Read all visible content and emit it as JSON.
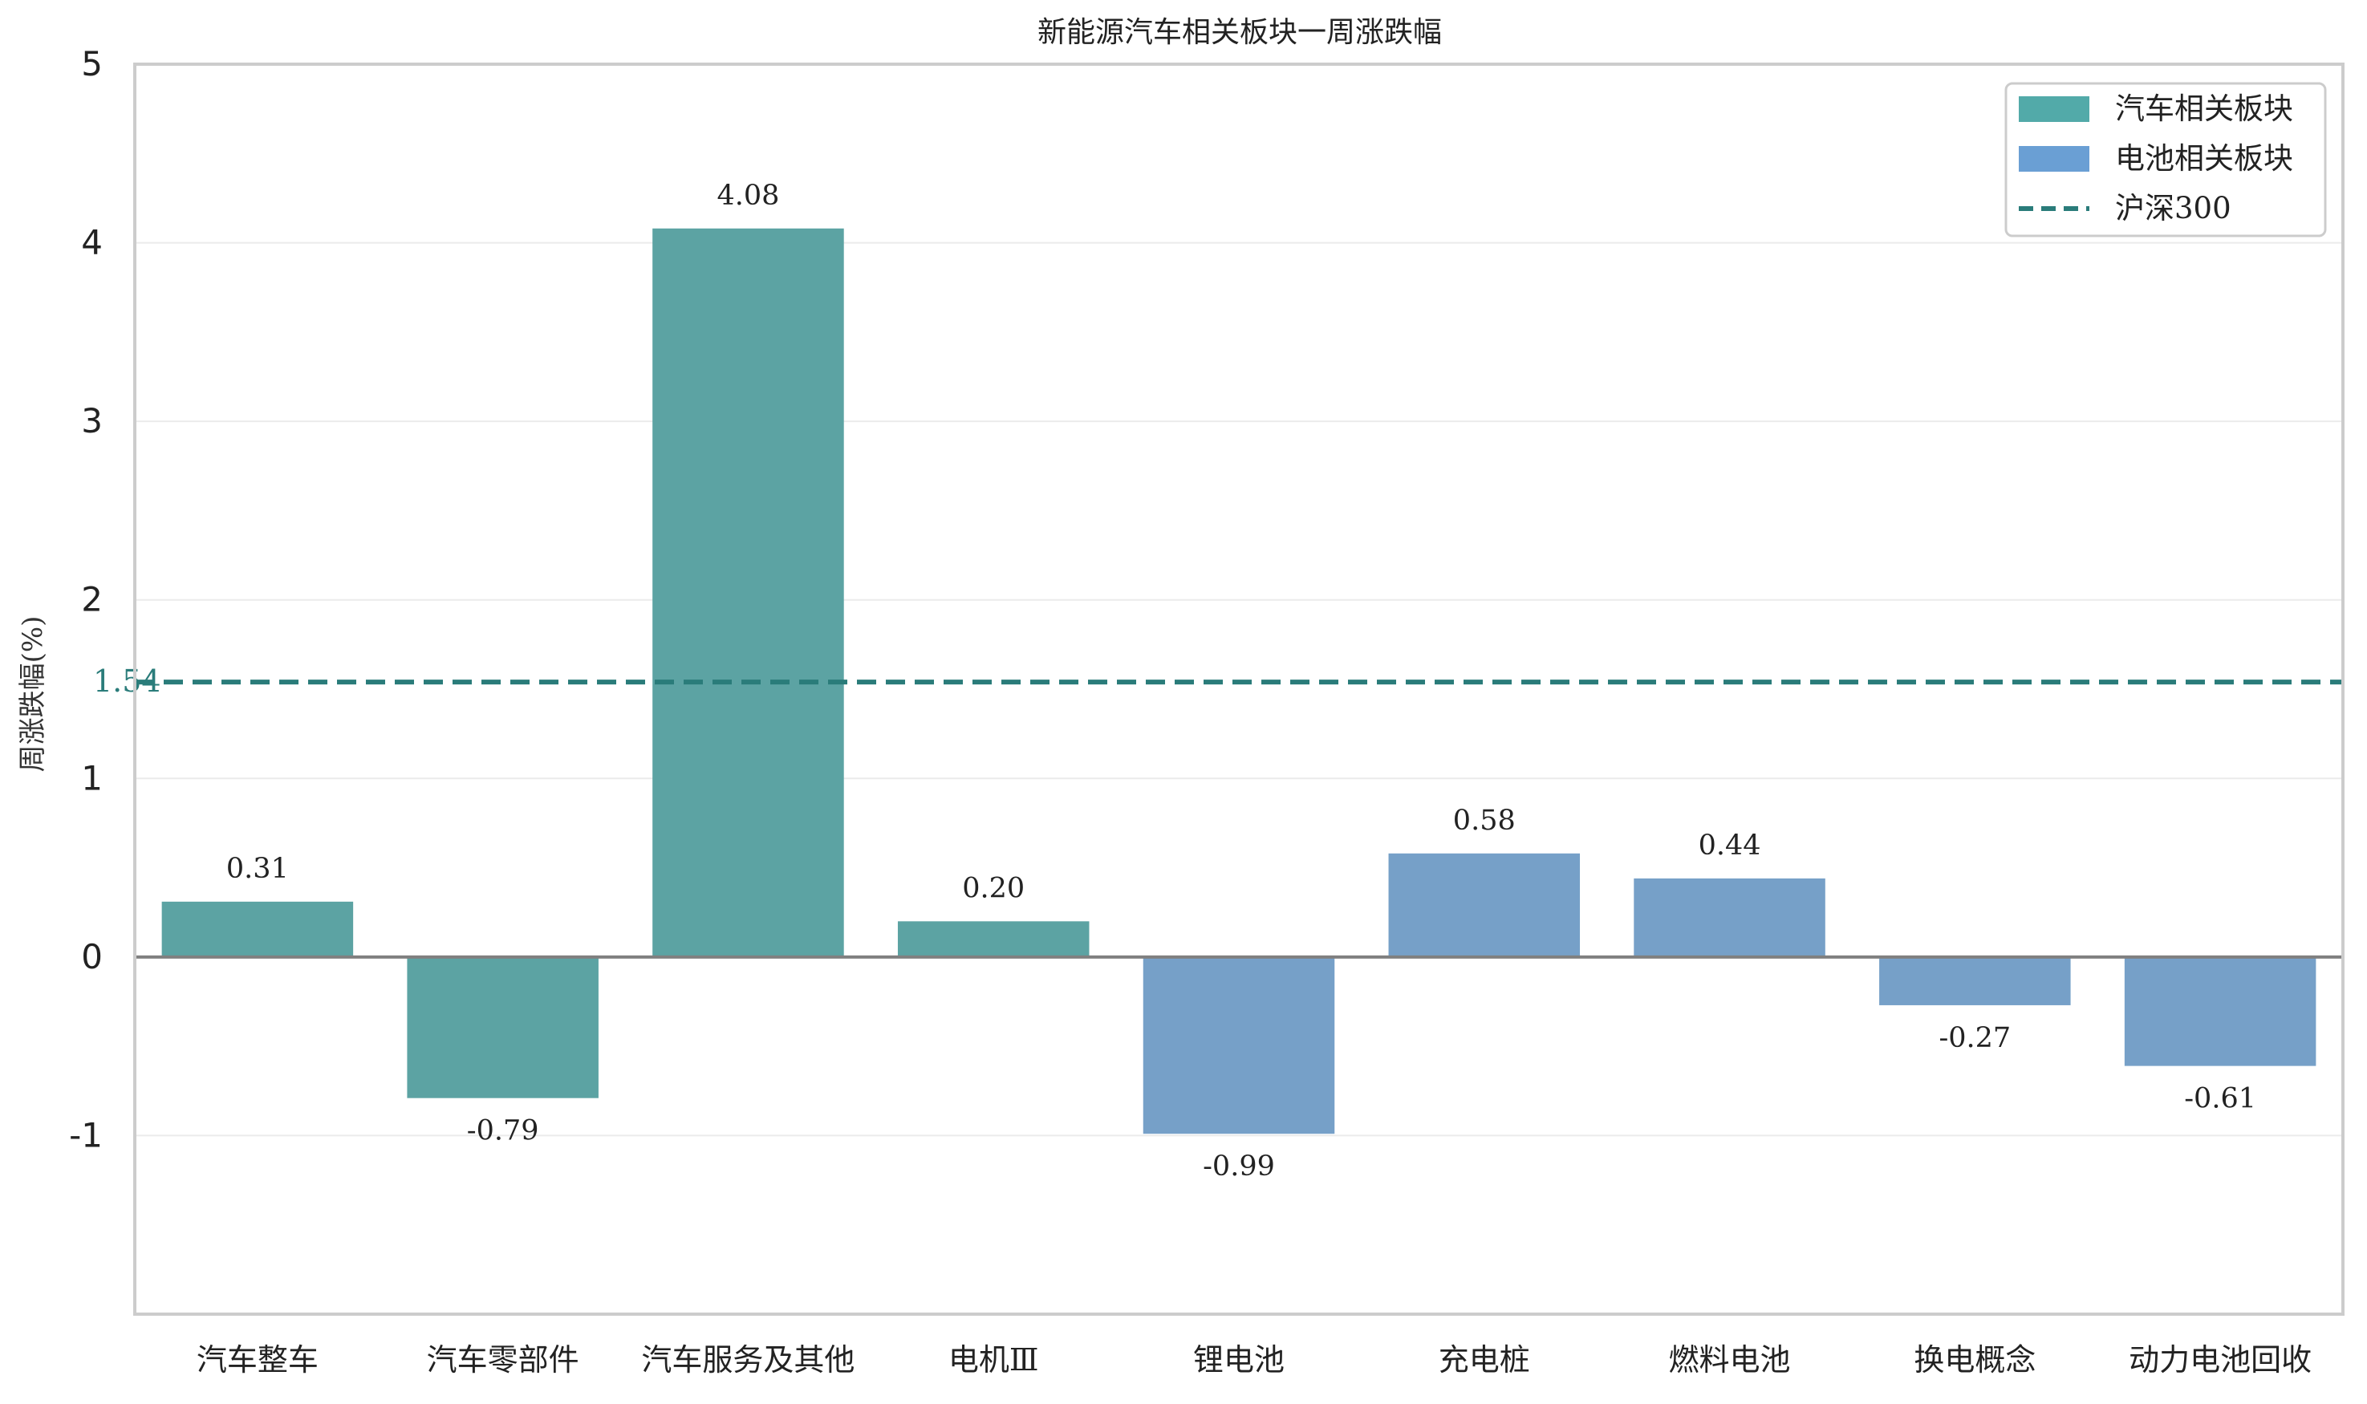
{
  "chart_data": {
    "type": "bar",
    "title": "新能源汽车相关板块一周涨跌幅",
    "xlabel": "",
    "ylabel": "周涨跌幅(%)",
    "ylim": [
      -2.0,
      5.0
    ],
    "yticks": [
      -1,
      0,
      1,
      2,
      3,
      4,
      5
    ],
    "categories": [
      "汽车整车",
      "汽车零部件",
      "汽车服务及其他",
      "电机Ⅲ",
      "锂电池",
      "充电桩",
      "燃料电池",
      "换电概念",
      "动力电池回收"
    ],
    "values": [
      0.31,
      -0.79,
      4.08,
      0.2,
      -0.99,
      0.58,
      0.44,
      -0.27,
      -0.61
    ],
    "value_labels": [
      "0.31",
      "-0.79",
      "4.08",
      "0.20",
      "-0.99",
      "0.58",
      "0.44",
      "-0.27",
      "-0.61"
    ],
    "groups": [
      "汽车相关板块",
      "汽车相关板块",
      "汽车相关板块",
      "汽车相关板块",
      "电池相关板块",
      "电池相关板块",
      "电池相关板块",
      "电池相关板块",
      "电池相关板块"
    ],
    "reference_line": {
      "name": "沪深300",
      "value": 1.54,
      "label": "1.54",
      "style": "dashed",
      "color": "#2a7c7a"
    },
    "legend": {
      "position": "top-right",
      "entries": [
        {
          "name": "汽车相关板块",
          "kind": "patch",
          "color": "#52aaa9"
        },
        {
          "name": "电池相关板块",
          "kind": "patch",
          "color": "#6a9fd4"
        },
        {
          "name": "沪深300",
          "kind": "dashed-line",
          "color": "#2a7c7a"
        }
      ]
    },
    "colors": {
      "汽车相关板块": "#5ca3a3",
      "电池相关板块": "#76a0c8",
      "zero_line": "#808080",
      "grid": "#ebebeb",
      "frame": "#cccccc"
    },
    "grid": true
  }
}
